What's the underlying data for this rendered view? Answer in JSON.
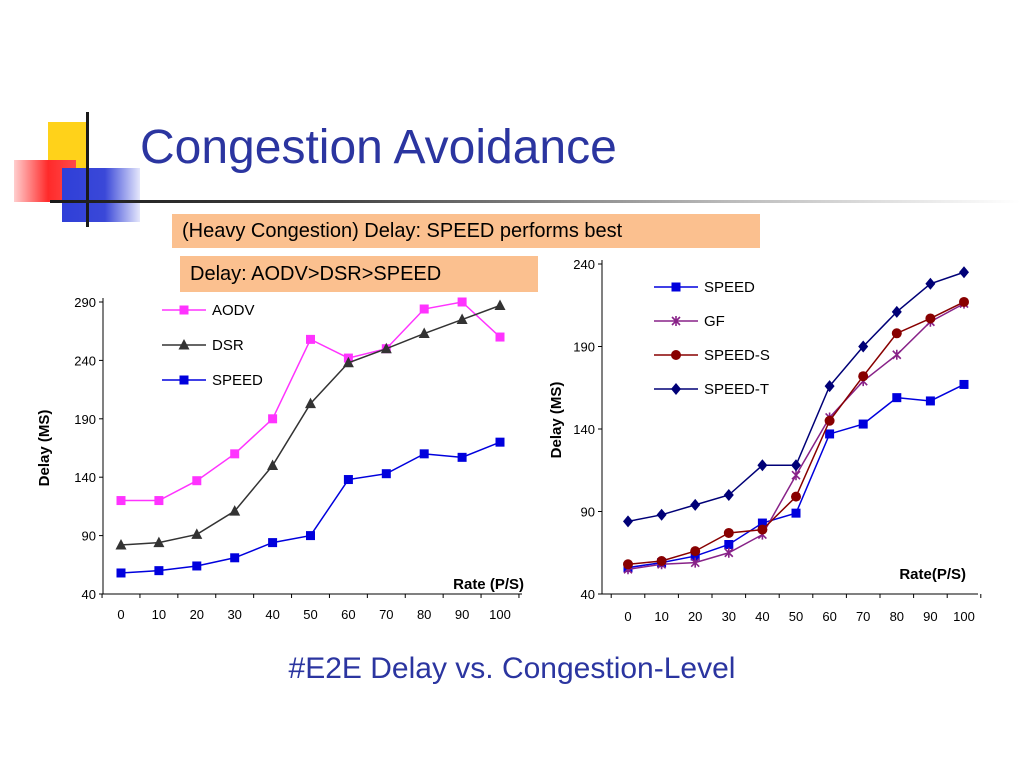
{
  "slide": {
    "title": "Congestion Avoidance",
    "callout_heavy": "(Heavy Congestion) Delay: SPEED performs best",
    "callout_order": "Delay: AODV>DSR>SPEED",
    "caption": "#E2E Delay vs. Congestion-Level"
  },
  "colors": {
    "title": "#2b35a0",
    "callout_bg": "#fbc08f"
  },
  "chart_data": [
    {
      "type": "line",
      "x": [
        0,
        10,
        20,
        30,
        40,
        50,
        60,
        70,
        80,
        90,
        100
      ],
      "x_tick_labels": [
        "0",
        "10",
        "20",
        "30",
        "40",
        "50",
        "60",
        "70",
        "80",
        "90",
        "100"
      ],
      "y_ticks": [
        40,
        90,
        140,
        190,
        240,
        290
      ],
      "ylim": [
        40,
        290
      ],
      "xlabel": "Rate (P/S)",
      "ylabel": "Delay (MS)",
      "legend_position": "top-left",
      "grid": false,
      "series": [
        {
          "name": "AODV",
          "color": "#ff33ff",
          "marker": "square",
          "values": [
            120,
            120,
            137,
            160,
            190,
            258,
            242,
            250,
            284,
            290,
            260
          ]
        },
        {
          "name": "DSR",
          "color": "#333333",
          "marker": "triangle",
          "values": [
            82,
            84,
            91,
            111,
            150,
            203,
            238,
            250,
            263,
            275,
            287
          ]
        },
        {
          "name": "SPEED",
          "color": "#0000dd",
          "marker": "square",
          "values": [
            58,
            60,
            64,
            71,
            84,
            90,
            138,
            143,
            160,
            157,
            170
          ]
        }
      ]
    },
    {
      "type": "line",
      "x": [
        0,
        10,
        20,
        30,
        40,
        50,
        60,
        70,
        80,
        90,
        100
      ],
      "x_tick_labels": [
        "0",
        "10",
        "20",
        "30",
        "40",
        "50",
        "60",
        "70",
        "80",
        "90",
        "100"
      ],
      "y_ticks": [
        40,
        90,
        140,
        190,
        240
      ],
      "ylim": [
        40,
        240
      ],
      "xlabel": "Rate(P/S)",
      "ylabel": "Delay (MS)",
      "legend_position": "top-left",
      "grid": false,
      "series": [
        {
          "name": "SPEED",
          "color": "#0000dd",
          "marker": "square",
          "values": [
            56,
            59,
            63,
            70,
            83,
            89,
            137,
            143,
            159,
            157,
            167
          ]
        },
        {
          "name": "GF",
          "color": "#882288",
          "marker": "star",
          "values": [
            55,
            58,
            59,
            65,
            76,
            112,
            147,
            169,
            185,
            205,
            216
          ]
        },
        {
          "name": "SPEED-S",
          "color": "#880000",
          "marker": "circle",
          "values": [
            58,
            60,
            66,
            77,
            79,
            99,
            145,
            172,
            198,
            207,
            217
          ]
        },
        {
          "name": "SPEED-T",
          "color": "#000077",
          "marker": "diamond",
          "values": [
            84,
            88,
            94,
            100,
            118,
            118,
            166,
            190,
            211,
            228,
            235
          ]
        }
      ]
    }
  ]
}
